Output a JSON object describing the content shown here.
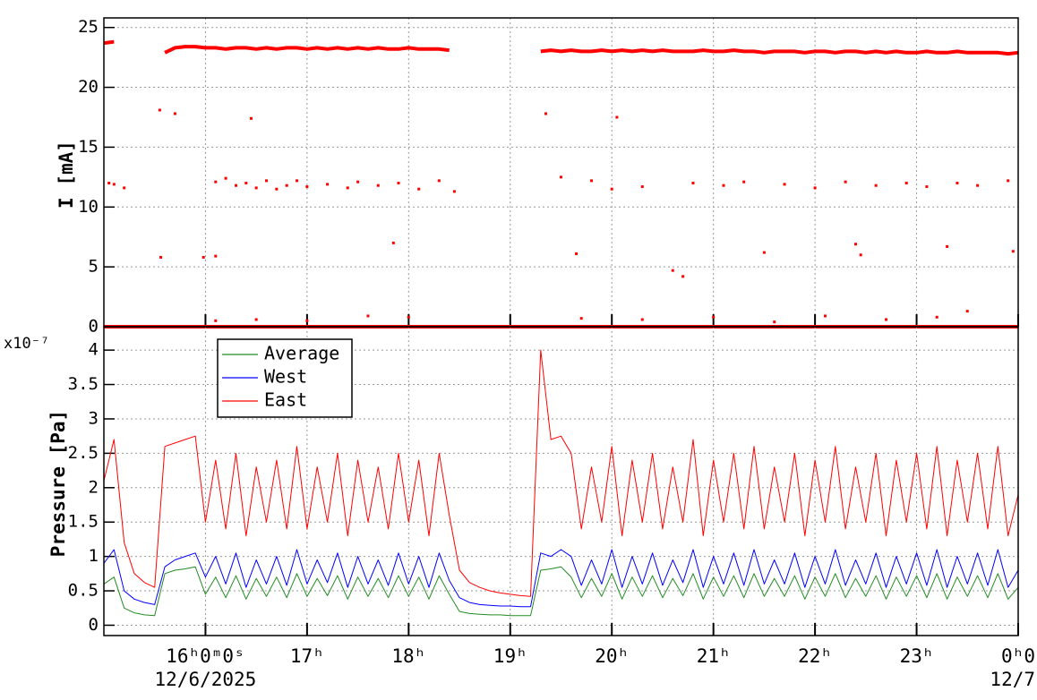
{
  "chart_data": [
    {
      "type": "scatter",
      "y_label": "I [mA]",
      "xlim": [
        15,
        24
      ],
      "ylim": [
        0,
        25.8
      ],
      "yticks": [
        0,
        5,
        10,
        15,
        20,
        25
      ],
      "xticks": [
        16,
        17,
        18,
        19,
        20,
        21,
        22,
        23,
        24
      ],
      "grid": true,
      "series": [
        {
          "type": "line",
          "color": "#ff0000",
          "x": [
            15,
            15.1,
            15.2,
            15.3,
            15.4,
            15.5,
            15.6,
            15.7,
            15.8,
            15.9,
            16,
            16.1,
            16.2,
            16.3,
            16.4,
            16.5,
            16.6,
            16.7,
            16.8,
            16.9,
            17,
            17.1,
            17.2,
            17.3,
            17.4,
            17.5,
            17.6,
            17.7,
            17.8,
            17.9,
            18,
            18.1,
            18.2,
            18.3,
            18.4,
            18.5,
            18.6,
            18.7,
            18.8,
            18.9,
            19,
            19.1,
            19.2,
            19.3,
            19.4,
            19.5,
            19.6,
            19.7,
            19.8,
            19.9,
            20,
            20.1,
            20.2,
            20.3,
            20.4,
            20.5,
            20.6,
            20.7,
            20.8,
            20.9,
            21,
            21.1,
            21.2,
            21.3,
            21.4,
            21.5,
            21.6,
            21.7,
            21.8,
            21.9,
            22,
            22.1,
            22.2,
            22.3,
            22.4,
            22.5,
            22.6,
            22.7,
            22.8,
            22.9,
            23,
            23.1,
            23.2,
            23.3,
            23.4,
            23.5,
            23.6,
            23.7,
            23.8,
            23.9,
            24
          ],
          "values": [
            23.7,
            23.8,
            null,
            null,
            null,
            null,
            22.9,
            23.3,
            23.4,
            23.4,
            23.3,
            23.3,
            23.2,
            23.3,
            23.3,
            23.2,
            23.3,
            23.2,
            23.3,
            23.3,
            23.2,
            23.3,
            23.2,
            23.3,
            23.2,
            23.3,
            23.2,
            23.3,
            23.2,
            23.2,
            23.3,
            23.2,
            23.2,
            23.2,
            23.1,
            null,
            null,
            null,
            null,
            null,
            null,
            null,
            null,
            23.0,
            23.1,
            23.0,
            23.1,
            23.0,
            23.0,
            23.1,
            23.0,
            23.1,
            23.0,
            23.1,
            23.0,
            23.1,
            23.0,
            23.0,
            23.0,
            23.1,
            23.0,
            23.0,
            23.1,
            23.0,
            23.0,
            22.9,
            23.0,
            23.0,
            23.0,
            22.9,
            23.0,
            23.0,
            22.9,
            23.0,
            23.0,
            22.9,
            23.0,
            22.9,
            23.0,
            22.9,
            22.9,
            23.0,
            22.9,
            22.9,
            23.0,
            22.9,
            22.9,
            22.9,
            22.9,
            22.8,
            22.9
          ]
        },
        {
          "type": "line",
          "color": "#ff0000",
          "x": [
            15,
            24
          ],
          "values": [
            0,
            0
          ]
        },
        {
          "type": "scatter",
          "color": "#ff0000",
          "x": [
            15.05,
            15.1,
            15.2,
            15.55,
            15.7,
            15.56,
            15.98,
            16.1,
            16.1,
            16.2,
            16.3,
            16.4,
            16.5,
            16.6,
            16.7,
            16.8,
            16.9,
            17.0,
            17.2,
            17.4,
            17.5,
            17.7,
            17.9,
            18.1,
            18.3,
            18.45,
            16.45,
            17.85,
            16.1,
            16.5,
            17.0,
            17.6,
            18.0,
            19.35,
            20.05,
            19.5,
            19.65,
            19.8,
            20.0,
            20.3,
            20.6,
            20.7,
            20.8,
            21.1,
            21.3,
            21.5,
            21.7,
            22.0,
            22.4,
            22.45,
            22.3,
            22.6,
            22.9,
            23.1,
            23.3,
            23.4,
            23.6,
            23.95,
            23.9,
            19.7,
            20.3,
            21.0,
            21.6,
            22.1,
            22.7,
            23.2,
            23.5
          ],
          "values": [
            12,
            11.9,
            11.6,
            18.1,
            17.8,
            5.8,
            5.8,
            5.9,
            12.1,
            12.4,
            11.8,
            12.0,
            11.6,
            12.2,
            11.5,
            11.8,
            12.2,
            11.7,
            11.9,
            11.6,
            12.1,
            11.8,
            12.0,
            11.5,
            12.2,
            11.3,
            17.4,
            7.0,
            0.5,
            0.6,
            0.5,
            0.9,
            0.8,
            17.8,
            17.5,
            12.5,
            6.1,
            12.2,
            11.5,
            11.7,
            4.7,
            4.2,
            12.0,
            11.8,
            12.1,
            6.2,
            11.9,
            11.6,
            6.9,
            6.0,
            12.1,
            11.8,
            12.0,
            11.7,
            6.7,
            12.0,
            11.8,
            6.3,
            12.2,
            0.7,
            0.6,
            0.8,
            0.4,
            0.9,
            0.6,
            0.8,
            1.3
          ]
        }
      ]
    },
    {
      "type": "line",
      "y_label": "Pressure [Pa]",
      "y_multiplier": "x10⁻⁷",
      "xlim": [
        15,
        24
      ],
      "ylim": [
        -0.15,
        4.34
      ],
      "yticks": [
        0,
        0.5,
        1,
        1.5,
        2,
        2.5,
        3,
        3.5,
        4
      ],
      "xticks": [
        {
          "value": 16,
          "label": "16ʰ0ᵐ0ˢ"
        },
        {
          "value": 17,
          "label": "17ʰ"
        },
        {
          "value": 18,
          "label": "18ʰ"
        },
        {
          "value": 19,
          "label": "19ʰ"
        },
        {
          "value": 20,
          "label": "20ʰ"
        },
        {
          "value": 21,
          "label": "21ʰ"
        },
        {
          "value": 22,
          "label": "22ʰ"
        },
        {
          "value": 23,
          "label": "23ʰ"
        },
        {
          "value": 24,
          "label": "0ʰ0"
        }
      ],
      "date_labels": [
        {
          "value": 16,
          "label": "12/6/2025"
        },
        {
          "value": 24,
          "label": "12/7"
        }
      ],
      "grid": true,
      "legend": "upper left",
      "x": [
        15,
        15.1,
        15.2,
        15.3,
        15.4,
        15.5,
        15.6,
        15.7,
        15.8,
        15.9,
        16,
        16.1,
        16.2,
        16.3,
        16.4,
        16.5,
        16.6,
        16.7,
        16.8,
        16.9,
        17,
        17.1,
        17.2,
        17.3,
        17.4,
        17.5,
        17.6,
        17.7,
        17.8,
        17.9,
        18,
        18.1,
        18.2,
        18.3,
        18.4,
        18.5,
        18.6,
        18.7,
        18.8,
        18.9,
        19,
        19.1,
        19.2,
        19.3,
        19.4,
        19.5,
        19.6,
        19.7,
        19.8,
        19.9,
        20,
        20.1,
        20.2,
        20.3,
        20.4,
        20.5,
        20.6,
        20.7,
        20.8,
        20.9,
        21,
        21.1,
        21.2,
        21.3,
        21.4,
        21.5,
        21.6,
        21.7,
        21.8,
        21.9,
        22,
        22.1,
        22.2,
        22.3,
        22.4,
        22.5,
        22.6,
        22.7,
        22.8,
        22.9,
        23,
        23.1,
        23.2,
        23.3,
        23.4,
        23.5,
        23.6,
        23.7,
        23.8,
        23.9,
        24
      ],
      "series": [
        {
          "name": "Average",
          "color": "#228b22",
          "values": [
            0.6,
            0.7,
            0.25,
            0.18,
            0.15,
            0.14,
            0.75,
            0.8,
            0.82,
            0.85,
            0.45,
            0.7,
            0.4,
            0.72,
            0.38,
            0.68,
            0.42,
            0.7,
            0.4,
            0.75,
            0.42,
            0.68,
            0.43,
            0.72,
            0.38,
            0.7,
            0.42,
            0.68,
            0.4,
            0.72,
            0.42,
            0.7,
            0.38,
            0.72,
            0.45,
            0.2,
            0.17,
            0.16,
            0.15,
            0.15,
            0.14,
            0.14,
            0.14,
            0.8,
            0.82,
            0.85,
            0.7,
            0.4,
            0.68,
            0.42,
            0.75,
            0.38,
            0.7,
            0.42,
            0.72,
            0.4,
            0.68,
            0.43,
            0.75,
            0.38,
            0.7,
            0.42,
            0.72,
            0.4,
            0.75,
            0.42,
            0.68,
            0.42,
            0.72,
            0.38,
            0.7,
            0.42,
            0.75,
            0.4,
            0.68,
            0.42,
            0.72,
            0.38,
            0.7,
            0.42,
            0.72,
            0.4,
            0.75,
            0.38,
            0.7,
            0.42,
            0.72,
            0.4,
            0.75,
            0.38,
            0.55
          ]
        },
        {
          "name": "West",
          "color": "#0000ff",
          "values": [
            0.9,
            1.1,
            0.5,
            0.38,
            0.33,
            0.3,
            0.85,
            0.95,
            1.0,
            1.05,
            0.7,
            1.0,
            0.6,
            1.05,
            0.55,
            0.95,
            0.6,
            1.0,
            0.58,
            1.1,
            0.6,
            0.95,
            0.62,
            1.05,
            0.55,
            1.0,
            0.6,
            0.95,
            0.58,
            1.05,
            0.6,
            1.0,
            0.55,
            1.05,
            0.65,
            0.4,
            0.33,
            0.3,
            0.29,
            0.28,
            0.28,
            0.27,
            0.27,
            1.05,
            1.0,
            1.1,
            1.0,
            0.58,
            0.95,
            0.6,
            1.1,
            0.55,
            1.0,
            0.6,
            1.05,
            0.58,
            0.95,
            0.62,
            1.1,
            0.55,
            1.0,
            0.6,
            1.05,
            0.58,
            1.1,
            0.6,
            0.95,
            0.6,
            1.05,
            0.55,
            1.0,
            0.6,
            1.1,
            0.58,
            0.95,
            0.6,
            1.05,
            0.55,
            1.0,
            0.6,
            1.05,
            0.58,
            1.1,
            0.55,
            1.0,
            0.6,
            1.05,
            0.58,
            1.1,
            0.55,
            0.8
          ]
        },
        {
          "name": "East",
          "color": "#ff0000",
          "values": [
            2.1,
            2.7,
            1.2,
            0.75,
            0.62,
            0.55,
            2.6,
            2.65,
            2.7,
            2.75,
            1.5,
            2.4,
            1.4,
            2.5,
            1.3,
            2.3,
            1.5,
            2.4,
            1.4,
            2.6,
            1.4,
            2.3,
            1.5,
            2.5,
            1.3,
            2.4,
            1.5,
            2.3,
            1.4,
            2.5,
            1.5,
            2.4,
            1.3,
            2.5,
            1.6,
            0.8,
            0.62,
            0.55,
            0.5,
            0.47,
            0.45,
            0.43,
            0.42,
            4.0,
            2.7,
            2.75,
            2.5,
            1.4,
            2.3,
            1.5,
            2.6,
            1.3,
            2.4,
            1.5,
            2.5,
            1.4,
            2.3,
            1.5,
            2.7,
            1.3,
            2.4,
            1.5,
            2.5,
            1.4,
            2.6,
            1.4,
            2.3,
            1.5,
            2.5,
            1.3,
            2.4,
            1.5,
            2.6,
            1.4,
            2.3,
            1.5,
            2.5,
            1.3,
            2.4,
            1.5,
            2.5,
            1.4,
            2.6,
            1.3,
            2.4,
            1.5,
            2.5,
            1.4,
            2.6,
            1.3,
            1.9
          ]
        }
      ]
    }
  ]
}
